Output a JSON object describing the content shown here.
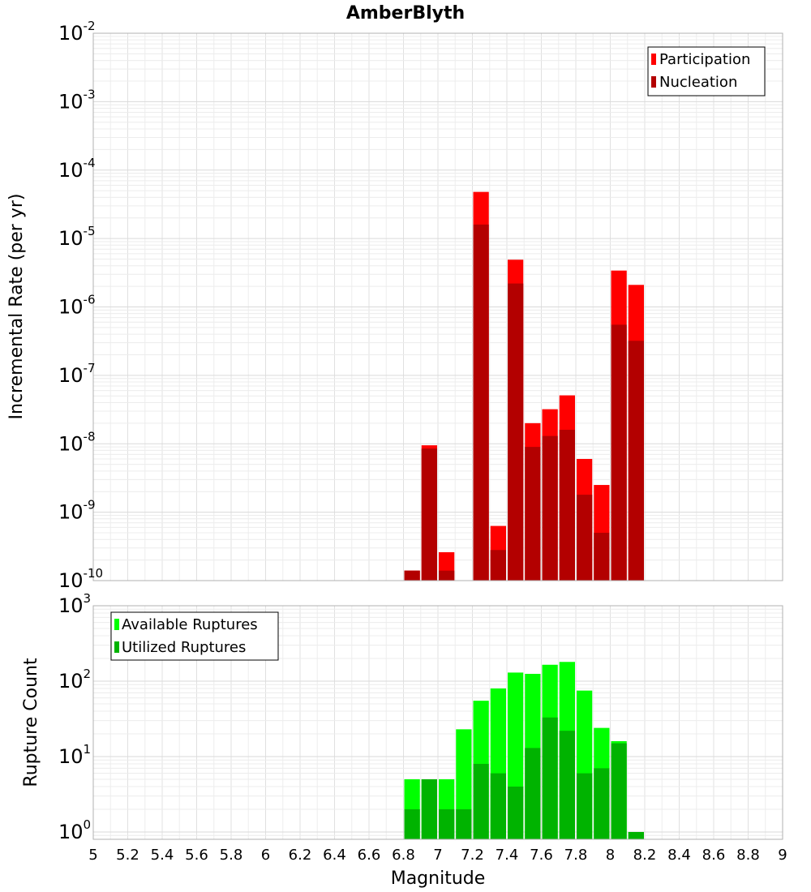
{
  "chart_data": [
    {
      "type": "bar",
      "title": "AmberBlyth",
      "xlabel": "Magnitude",
      "ylabel": "Incremental Rate (per yr)",
      "xlim": [
        5,
        9
      ],
      "ylim": [
        1e-10,
        0.01
      ],
      "yscale": "log",
      "grid": true,
      "legend_position": "top-right",
      "bin_width": 0.1,
      "x_ticks": [
        "5",
        "5.2",
        "5.4",
        "5.6",
        "5.8",
        "6",
        "6.2",
        "6.4",
        "6.6",
        "6.8",
        "7",
        "7.2",
        "7.4",
        "7.6",
        "7.8",
        "8",
        "8.2",
        "8.4",
        "8.6",
        "8.8",
        "9"
      ],
      "y_ticks": [
        {
          "base": "10",
          "exp": "-10",
          "value": 1e-10
        },
        {
          "base": "10",
          "exp": "-9",
          "value": 1e-09
        },
        {
          "base": "10",
          "exp": "-8",
          "value": 1e-08
        },
        {
          "base": "10",
          "exp": "-7",
          "value": 1e-07
        },
        {
          "base": "10",
          "exp": "-6",
          "value": 1e-06
        },
        {
          "base": "10",
          "exp": "-5",
          "value": 1e-05
        },
        {
          "base": "10",
          "exp": "-4",
          "value": 0.0001
        },
        {
          "base": "10",
          "exp": "-3",
          "value": 0.001
        },
        {
          "base": "10",
          "exp": "-2",
          "value": 0.01
        }
      ],
      "series": [
        {
          "name": "Participation",
          "color": "#ff0000",
          "x": [
            6.85,
            6.95,
            7.05,
            7.25,
            7.35,
            7.45,
            7.55,
            7.65,
            7.75,
            7.85,
            7.95,
            8.05,
            8.15
          ],
          "values": [
            1.4e-10,
            9.5e-09,
            2.6e-10,
            4.8e-05,
            6.3e-10,
            4.9e-06,
            2e-08,
            3.2e-08,
            5.1e-08,
            6e-09,
            2.5e-09,
            3.4e-06,
            2.1e-06
          ]
        },
        {
          "name": "Nucleation",
          "color": "#b30000",
          "x": [
            6.85,
            6.95,
            7.05,
            7.25,
            7.35,
            7.45,
            7.55,
            7.65,
            7.75,
            7.85,
            7.95,
            8.05,
            8.15
          ],
          "values": [
            1.4e-10,
            8.5e-09,
            1.4e-10,
            1.6e-05,
            2.8e-10,
            2.2e-06,
            9e-09,
            1.3e-08,
            1.6e-08,
            1.8e-09,
            5e-10,
            5.5e-07,
            3.2e-07
          ]
        }
      ]
    },
    {
      "type": "bar",
      "xlabel": "Magnitude",
      "ylabel": "Rupture Count",
      "xlim": [
        5,
        9
      ],
      "ylim": [
        0.8,
        1000
      ],
      "yscale": "log",
      "grid": true,
      "legend_position": "top-left",
      "bin_width": 0.1,
      "y_ticks": [
        {
          "base": "10",
          "exp": "0",
          "value": 1
        },
        {
          "base": "10",
          "exp": "1",
          "value": 10
        },
        {
          "base": "10",
          "exp": "2",
          "value": 100
        },
        {
          "base": "10",
          "exp": "3",
          "value": 1000
        }
      ],
      "series": [
        {
          "name": "Available Ruptures",
          "color": "#00ff00",
          "x": [
            6.85,
            6.95,
            7.05,
            7.15,
            7.25,
            7.35,
            7.45,
            7.55,
            7.65,
            7.75,
            7.85,
            7.95,
            8.05,
            8.15
          ],
          "values": [
            5,
            5,
            5,
            23,
            55,
            80,
            130,
            125,
            165,
            180,
            75,
            24,
            16,
            1
          ]
        },
        {
          "name": "Utilized Ruptures",
          "color": "#00b300",
          "x": [
            6.85,
            6.95,
            7.05,
            7.15,
            7.25,
            7.35,
            7.45,
            7.55,
            7.65,
            7.75,
            7.85,
            7.95,
            8.05,
            8.15
          ],
          "values": [
            2,
            5,
            2,
            2,
            8,
            6,
            4,
            13,
            33,
            22,
            6,
            7,
            15,
            1
          ]
        }
      ]
    }
  ]
}
